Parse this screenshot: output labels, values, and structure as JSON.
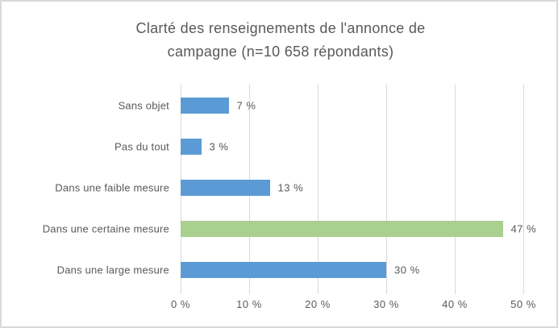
{
  "chart_data": {
    "type": "bar",
    "orientation": "horizontal",
    "title": "Clarté des renseignements de l'annonce de campagne (n=10 658 répondants)",
    "title_lines": [
      "Clarté des renseignements de l'annonce de",
      "campagne (n=10 658 répondants)"
    ],
    "categories": [
      "Sans objet",
      "Pas du tout",
      "Dans une faible mesure",
      "Dans une certaine mesure",
      "Dans une large mesure"
    ],
    "values": [
      7,
      3,
      13,
      47,
      30
    ],
    "value_labels": [
      "7 %",
      "3 %",
      "13 %",
      "47 %",
      "30 %"
    ],
    "bar_colors": [
      "#5b9bd5",
      "#5b9bd5",
      "#5b9bd5",
      "#a9d08e",
      "#5b9bd5"
    ],
    "x_axis": {
      "min": 0,
      "max": 50,
      "ticks": [
        0,
        10,
        20,
        30,
        40,
        50
      ],
      "tick_labels": [
        "0 %",
        "10 %",
        "20 %",
        "30 %",
        "40 %",
        "50 %"
      ]
    },
    "grid": "vertical-gridlines-on",
    "legend": "none",
    "colors": {
      "default_bar": "#5b9bd5",
      "highlight_bar": "#a9d08e",
      "text": "#595959",
      "gridline": "#d9d9d9",
      "border": "#d9d9d9",
      "background": "#ffffff"
    }
  }
}
